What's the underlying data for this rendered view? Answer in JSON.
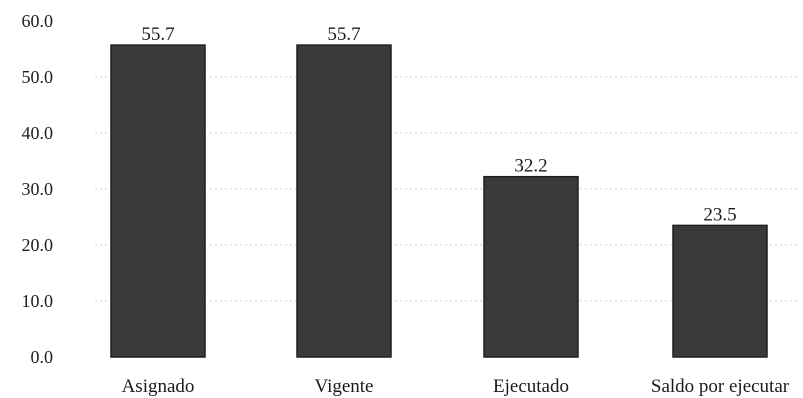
{
  "chart_data": {
    "type": "bar",
    "categories": [
      "Asignado",
      "Vigente",
      "Ejecutado",
      "Saldo por ejecutar"
    ],
    "values": [
      55.7,
      55.7,
      32.2,
      23.5
    ],
    "value_labels": [
      "55.7",
      "55.7",
      "32.2",
      "23.5"
    ],
    "title": "",
    "xlabel": "",
    "ylabel": "",
    "ylim": [
      0,
      60
    ],
    "yticks": [
      "0.0",
      "10.0",
      "20.0",
      "30.0",
      "40.0",
      "50.0",
      "60.0"
    ],
    "grid": true,
    "legend": "none"
  },
  "colors": {
    "bar_fill": "#3a3a3a",
    "bar_edge": "#1e1e1e",
    "text": "#1a1a1a",
    "grid": "#cfcfcf"
  }
}
